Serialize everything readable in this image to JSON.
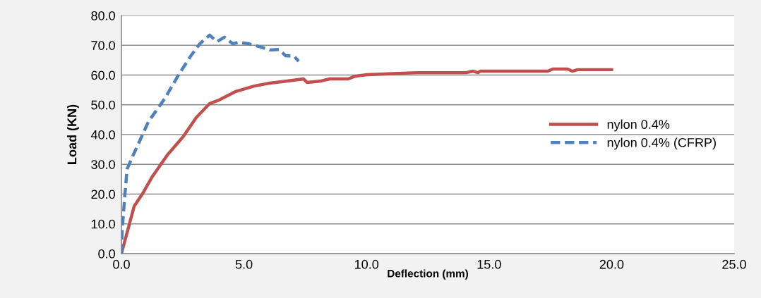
{
  "chart_data": {
    "type": "line",
    "xlabel": "Deflection (mm)",
    "ylabel": "Load (KN)",
    "xlim": [
      0,
      25
    ],
    "xticks": [
      {
        "value": 0,
        "label": "0.0"
      },
      {
        "value": 5,
        "label": "5.0"
      },
      {
        "value": 10,
        "label": "10.0"
      },
      {
        "value": 15,
        "label": "15.0"
      },
      {
        "value": 20,
        "label": "20.0"
      },
      {
        "value": 25,
        "label": "25.0"
      }
    ],
    "ylim": [
      0,
      80
    ],
    "yticks": [
      {
        "value": 0,
        "label": "0.0"
      },
      {
        "value": 10,
        "label": "10.0"
      },
      {
        "value": 20,
        "label": "20.0"
      },
      {
        "value": 30,
        "label": "30.0"
      },
      {
        "value": 40,
        "label": "40.0"
      },
      {
        "value": 50,
        "label": "50.0"
      },
      {
        "value": 60,
        "label": "60.0"
      },
      {
        "value": 70,
        "label": "70.0"
      },
      {
        "value": 80,
        "label": "80.0"
      }
    ],
    "grid": "y",
    "legend": "right",
    "marker": "none",
    "series": [
      {
        "name": "nylon 0.4%",
        "color": "#c0504d",
        "line_style": "solid",
        "x": [
          0,
          0.52,
          0.86,
          1.24,
          1.87,
          2.54,
          3.05,
          3.6,
          3.98,
          4.64,
          5.42,
          5.99,
          6.77,
          7.43,
          7.58,
          8.15,
          8.5,
          9.25,
          9.54,
          10.03,
          10.9,
          12.05,
          14.06,
          14.35,
          14.55,
          14.64,
          17.4,
          17.6,
          18.2,
          18.4,
          18.6,
          20.0
        ],
        "values": [
          0,
          15.9,
          20.1,
          25.6,
          33.1,
          39.5,
          45.7,
          50.4,
          51.6,
          54.4,
          56.3,
          57.2,
          58.0,
          58.7,
          57.5,
          58.0,
          58.7,
          58.7,
          59.6,
          60.1,
          60.4,
          60.8,
          60.8,
          61.3,
          60.8,
          61.3,
          61.3,
          62.0,
          62.0,
          61.3,
          61.8,
          61.8
        ]
      },
      {
        "name": "nylon 0.4% (CFRP)",
        "color": "#4f81bd",
        "line_style": "dashed",
        "x": [
          0,
          0.03,
          0.14,
          0.23,
          0.52,
          1.1,
          1.76,
          2.33,
          2.82,
          3.2,
          3.6,
          3.9,
          4.2,
          4.55,
          4.78,
          5.2,
          5.7,
          6.05,
          6.43,
          6.7,
          7.05,
          7.23
        ],
        "values": [
          0,
          7.8,
          19.6,
          28.4,
          33.8,
          44.3,
          52.0,
          60.0,
          66.3,
          70.5,
          73.4,
          71.2,
          72.7,
          70.5,
          71.0,
          70.5,
          69.4,
          68.4,
          68.6,
          66.5,
          66.3,
          64.6
        ]
      }
    ]
  }
}
